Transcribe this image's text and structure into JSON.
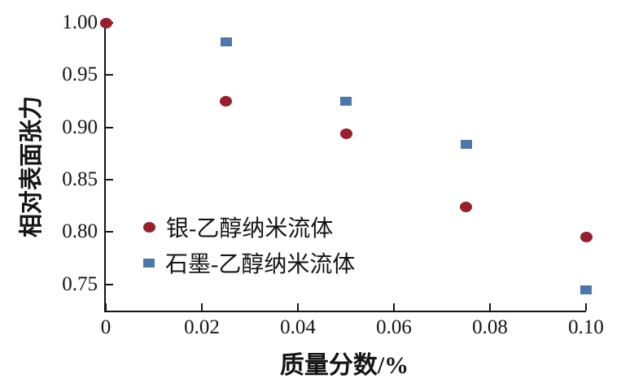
{
  "figure": {
    "background": "#ffffff",
    "axis_color": "#141414"
  },
  "chart_data": {
    "type": "scatter",
    "title": "",
    "xlabel": "质量分数/%",
    "ylabel": "相对表面张力",
    "xlim": [
      0,
      0.1
    ],
    "ylim": [
      0.725,
      1.0
    ],
    "grid": false,
    "legend_position": "inside-lower-left",
    "x_ticks": [
      {
        "value": 0,
        "label": "0"
      },
      {
        "value": 0.02,
        "label": "0.02"
      },
      {
        "value": 0.04,
        "label": "0.04"
      },
      {
        "value": 0.06,
        "label": "0.06"
      },
      {
        "value": 0.08,
        "label": "0.08"
      },
      {
        "value": 0.1,
        "label": "0.10"
      }
    ],
    "y_ticks": [
      {
        "value": 1.0,
        "label": "1.00"
      },
      {
        "value": 0.95,
        "label": "0.95"
      },
      {
        "value": 0.9,
        "label": "0.90"
      },
      {
        "value": 0.85,
        "label": "0.85"
      },
      {
        "value": 0.8,
        "label": "0.80"
      },
      {
        "value": 0.75,
        "label": "0.75"
      }
    ],
    "series": [
      {
        "name": "银-乙醇纳米流体",
        "marker": "circle",
        "color": "#97202f",
        "x": [
          0,
          0.025,
          0.05,
          0.075,
          0.1
        ],
        "y": [
          1.0,
          0.925,
          0.894,
          0.824,
          0.795
        ]
      },
      {
        "name": "石墨-乙醇纳米流体",
        "marker": "square",
        "color": "#4d77a8",
        "x": [
          0.025,
          0.05,
          0.075,
          0.1
        ],
        "y": [
          0.982,
          0.925,
          0.884,
          0.745
        ]
      }
    ]
  }
}
